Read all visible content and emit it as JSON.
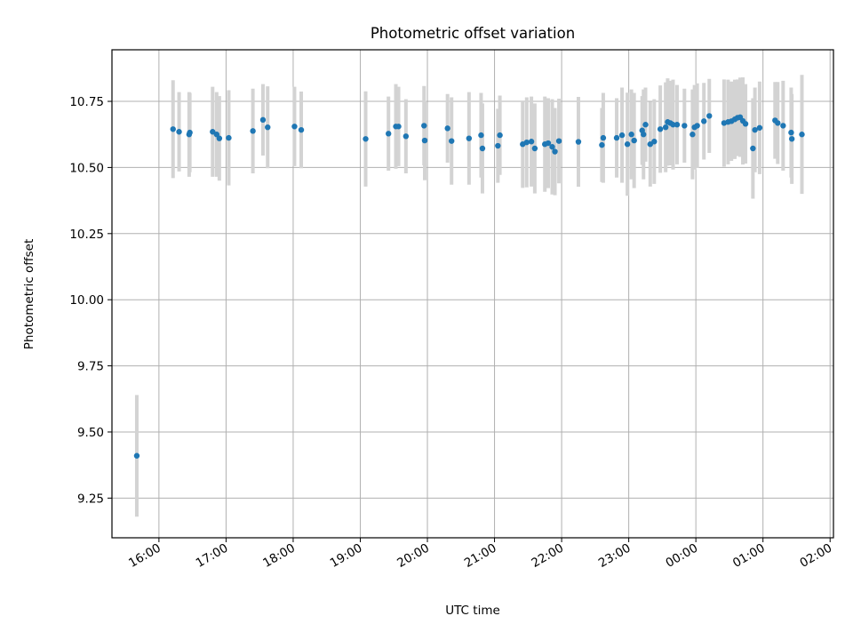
{
  "chart_data": {
    "type": "scatter",
    "title": "Photometric offset variation",
    "xlabel": "UTC time",
    "ylabel": "Photometric offset",
    "grid": true,
    "xlim": [
      15.3,
      26.05
    ],
    "ylim": [
      9.1,
      10.945
    ],
    "x_ticks": [
      {
        "value": 16,
        "label": "16:00"
      },
      {
        "value": 17,
        "label": "17:00"
      },
      {
        "value": 18,
        "label": "18:00"
      },
      {
        "value": 19,
        "label": "19:00"
      },
      {
        "value": 20,
        "label": "20:00"
      },
      {
        "value": 21,
        "label": "21:00"
      },
      {
        "value": 22,
        "label": "22:00"
      },
      {
        "value": 23,
        "label": "23:00"
      },
      {
        "value": 24,
        "label": "00:00"
      },
      {
        "value": 25,
        "label": "01:00"
      },
      {
        "value": 26,
        "label": "02:00"
      }
    ],
    "y_ticks": [
      {
        "value": 9.25,
        "label": "9.25"
      },
      {
        "value": 9.5,
        "label": "9.50"
      },
      {
        "value": 9.75,
        "label": "9.75"
      },
      {
        "value": 10.0,
        "label": "10.00"
      },
      {
        "value": 10.25,
        "label": "10.25"
      },
      {
        "value": 10.5,
        "label": "10.50"
      },
      {
        "value": 10.75,
        "label": "10.75"
      }
    ],
    "series": [
      {
        "name": "offset",
        "marker_color": "#1f77b4",
        "errorbar_color": "#d3d3d3",
        "points": [
          [
            15.67,
            9.41,
            0.23
          ],
          [
            16.21,
            10.645,
            0.185
          ],
          [
            16.3,
            10.635,
            0.15
          ],
          [
            16.45,
            10.625,
            0.16
          ],
          [
            16.46,
            10.632,
            0.15
          ],
          [
            16.8,
            10.635,
            0.17
          ],
          [
            16.86,
            10.625,
            0.16
          ],
          [
            16.9,
            10.61,
            0.16
          ],
          [
            17.04,
            10.612,
            0.18
          ],
          [
            17.4,
            10.638,
            0.16
          ],
          [
            17.55,
            10.68,
            0.135
          ],
          [
            17.62,
            10.652,
            0.155
          ],
          [
            18.02,
            10.655,
            0.15
          ],
          [
            18.12,
            10.642,
            0.145
          ],
          [
            19.08,
            10.608,
            0.18
          ],
          [
            19.42,
            10.628,
            0.14
          ],
          [
            19.53,
            10.655,
            0.16
          ],
          [
            19.57,
            10.655,
            0.15
          ],
          [
            19.68,
            10.618,
            0.14
          ],
          [
            19.95,
            10.658,
            0.15
          ],
          [
            19.96,
            10.602,
            0.15
          ],
          [
            20.3,
            10.648,
            0.13
          ],
          [
            20.36,
            10.6,
            0.165
          ],
          [
            20.62,
            10.61,
            0.175
          ],
          [
            20.8,
            10.622,
            0.16
          ],
          [
            20.82,
            10.572,
            0.17
          ],
          [
            21.05,
            10.582,
            0.14
          ],
          [
            21.08,
            10.622,
            0.15
          ],
          [
            21.42,
            10.588,
            0.165
          ],
          [
            21.48,
            10.595,
            0.17
          ],
          [
            21.55,
            10.598,
            0.17
          ],
          [
            21.6,
            10.572,
            0.17
          ],
          [
            21.75,
            10.588,
            0.18
          ],
          [
            21.8,
            10.592,
            0.17
          ],
          [
            21.86,
            10.578,
            0.18
          ],
          [
            21.9,
            10.56,
            0.165
          ],
          [
            21.96,
            10.6,
            0.16
          ],
          [
            22.25,
            10.597,
            0.17
          ],
          [
            22.6,
            10.585,
            0.14
          ],
          [
            22.62,
            10.612,
            0.17
          ],
          [
            22.82,
            10.612,
            0.15
          ],
          [
            22.9,
            10.622,
            0.18
          ],
          [
            22.98,
            10.588,
            0.195
          ],
          [
            23.04,
            10.625,
            0.17
          ],
          [
            23.08,
            10.602,
            0.18
          ],
          [
            23.2,
            10.64,
            0.13
          ],
          [
            23.22,
            10.625,
            0.17
          ],
          [
            23.25,
            10.662,
            0.14
          ],
          [
            23.32,
            10.588,
            0.16
          ],
          [
            23.38,
            10.598,
            0.16
          ],
          [
            23.47,
            10.645,
            0.165
          ],
          [
            23.55,
            10.652,
            0.17
          ],
          [
            23.58,
            10.672,
            0.165
          ],
          [
            23.62,
            10.668,
            0.16
          ],
          [
            23.66,
            10.662,
            0.17
          ],
          [
            23.72,
            10.662,
            0.15
          ],
          [
            23.83,
            10.658,
            0.14
          ],
          [
            23.95,
            10.625,
            0.17
          ],
          [
            23.98,
            10.652,
            0.16
          ],
          [
            24.02,
            10.658,
            0.16
          ],
          [
            24.12,
            10.675,
            0.145
          ],
          [
            24.2,
            10.695,
            0.14
          ],
          [
            24.42,
            10.668,
            0.165
          ],
          [
            24.48,
            10.672,
            0.16
          ],
          [
            24.53,
            10.675,
            0.15
          ],
          [
            24.58,
            10.682,
            0.15
          ],
          [
            24.62,
            10.688,
            0.145
          ],
          [
            24.66,
            10.69,
            0.15
          ],
          [
            24.7,
            10.676,
            0.165
          ],
          [
            24.74,
            10.665,
            0.15
          ],
          [
            24.85,
            10.572,
            0.19
          ],
          [
            24.88,
            10.642,
            0.16
          ],
          [
            24.95,
            10.65,
            0.175
          ],
          [
            25.18,
            10.678,
            0.145
          ],
          [
            25.22,
            10.668,
            0.155
          ],
          [
            25.3,
            10.658,
            0.17
          ],
          [
            25.42,
            10.632,
            0.17
          ],
          [
            25.43,
            10.608,
            0.17
          ],
          [
            25.58,
            10.625,
            0.225
          ]
        ]
      }
    ]
  }
}
